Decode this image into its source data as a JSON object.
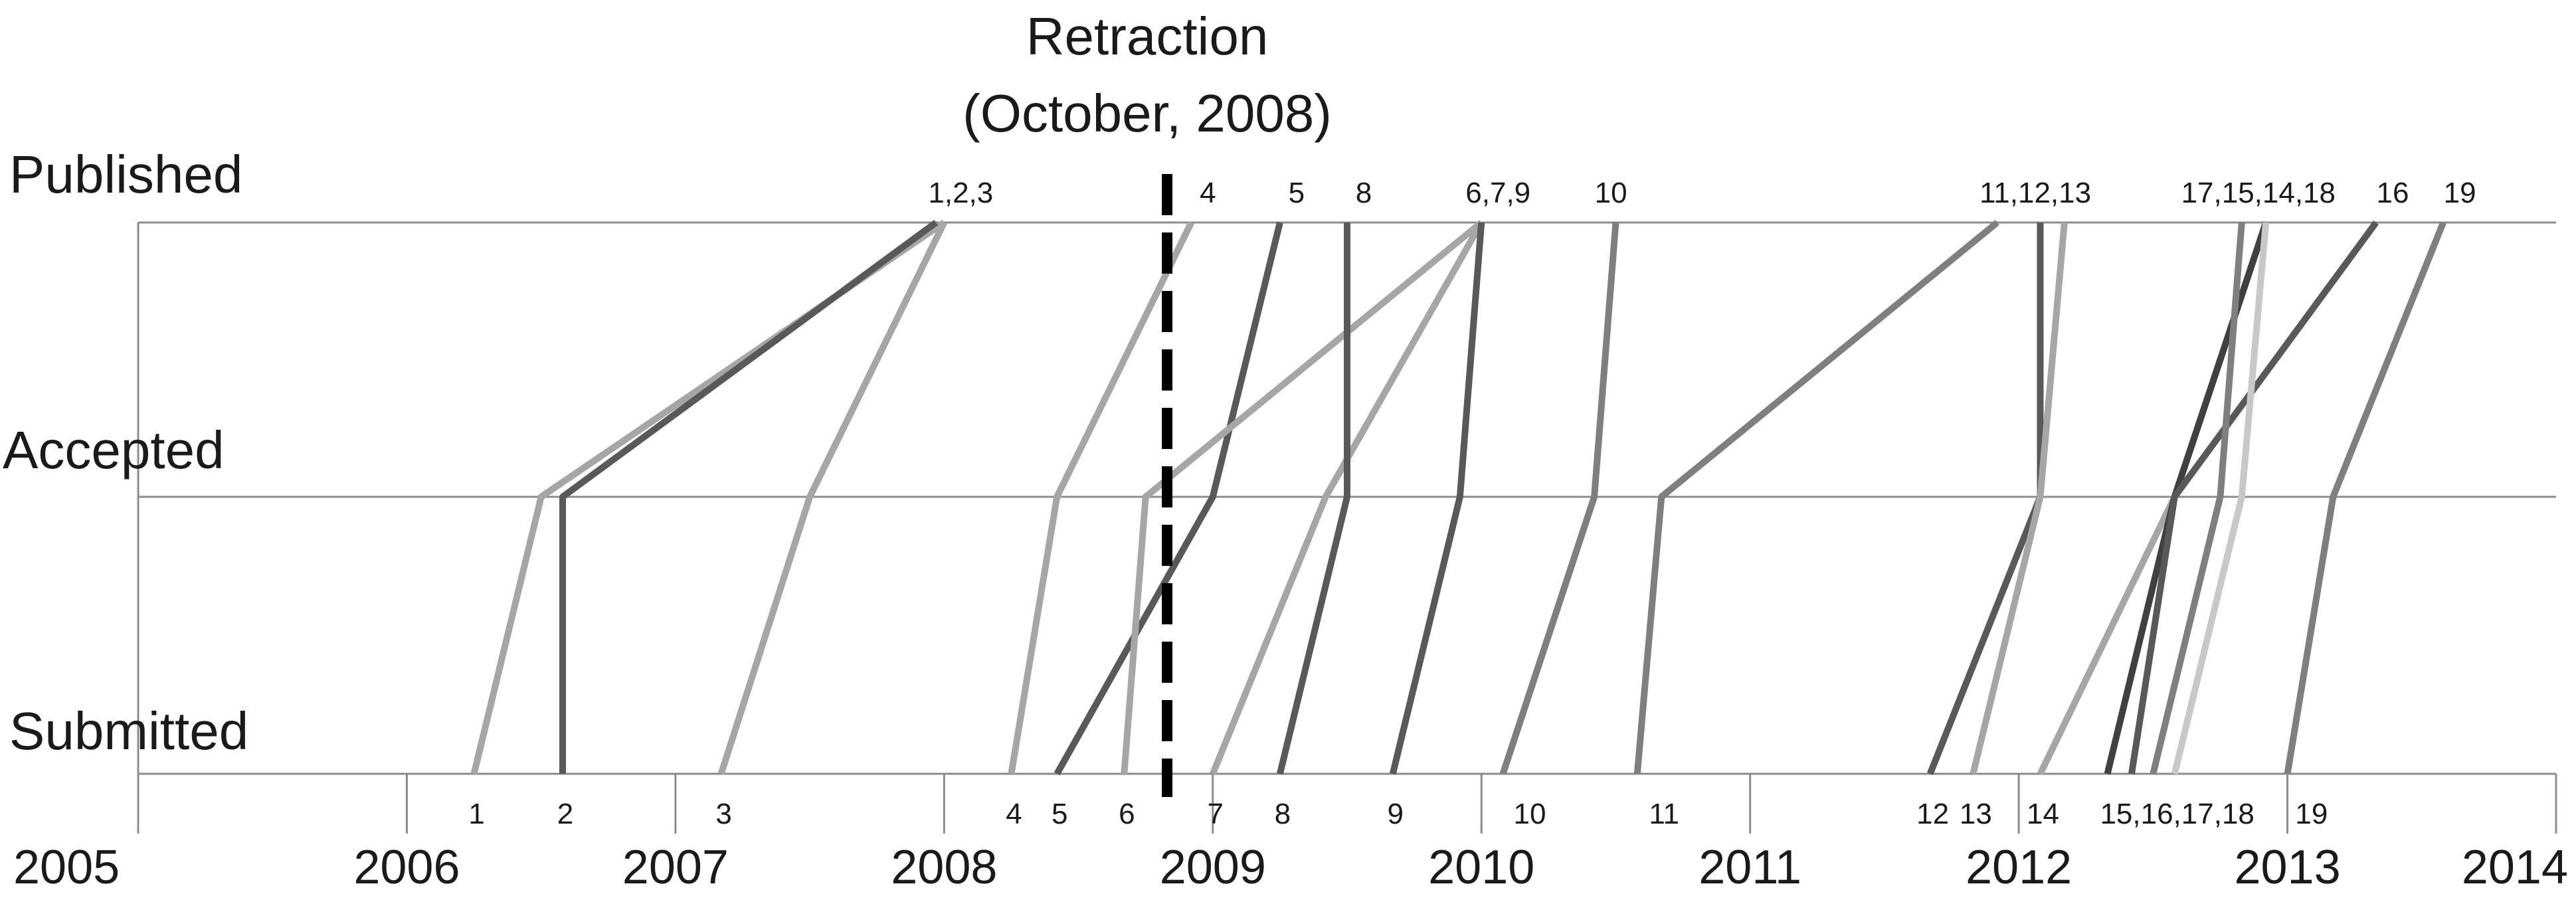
{
  "chart_data": {
    "type": "line",
    "title": "",
    "xlabel": "",
    "ylabel": "",
    "xlim": [
      2005,
      2014
    ],
    "x_ticks": [
      "2005",
      "2006",
      "2007",
      "2008",
      "2009",
      "2010",
      "2011",
      "2012",
      "2013",
      "2014"
    ],
    "stages": [
      "Submitted",
      "Accepted",
      "Published"
    ],
    "retraction": {
      "label_line1": "Retraction",
      "label_line2": "(October, 2008)",
      "x": 2008.83
    },
    "series": [
      {
        "id": "1",
        "submitted": 2006.25,
        "accepted": 2006.5,
        "published": 2008.0,
        "color": "#a6a6a6"
      },
      {
        "id": "2",
        "submitted": 2006.58,
        "accepted": 2006.58,
        "published": 2007.97,
        "color": "#595959"
      },
      {
        "id": "3",
        "submitted": 2007.17,
        "accepted": 2007.5,
        "published": 2008.0,
        "color": "#a6a6a6"
      },
      {
        "id": "4",
        "submitted": 2008.25,
        "accepted": 2008.42,
        "published": 2008.92,
        "color": "#a6a6a6"
      },
      {
        "id": "5",
        "submitted": 2008.42,
        "accepted": 2009.0,
        "published": 2009.25,
        "color": "#595959"
      },
      {
        "id": "6",
        "submitted": 2008.67,
        "accepted": 2008.75,
        "published": 2010.0,
        "color": "#a6a6a6"
      },
      {
        "id": "7",
        "submitted": 2009.0,
        "accepted": 2009.42,
        "published": 2010.0,
        "color": "#a6a6a6"
      },
      {
        "id": "8",
        "submitted": 2009.25,
        "accepted": 2009.5,
        "published": 2009.5,
        "color": "#595959"
      },
      {
        "id": "9",
        "submitted": 2009.67,
        "accepted": 2009.92,
        "published": 2010.0,
        "color": "#595959"
      },
      {
        "id": "10",
        "submitted": 2010.08,
        "accepted": 2010.42,
        "published": 2010.5,
        "color": "#7f7f7f"
      },
      {
        "id": "11",
        "submitted": 2010.58,
        "accepted": 2010.67,
        "published": 2011.92,
        "color": "#7f7f7f"
      },
      {
        "id": "12",
        "submitted": 2011.67,
        "accepted": 2012.08,
        "published": 2012.08,
        "color": "#595959"
      },
      {
        "id": "13",
        "submitted": 2011.83,
        "accepted": 2012.08,
        "published": 2012.17,
        "color": "#a6a6a6"
      },
      {
        "id": "14",
        "submitted": 2012.08,
        "accepted": 2012.58,
        "published": 2012.92,
        "color": "#a6a6a6"
      },
      {
        "id": "15",
        "submitted": 2012.33,
        "accepted": 2012.58,
        "published": 2012.92,
        "color": "#404040"
      },
      {
        "id": "16",
        "submitted": 2012.42,
        "accepted": 2012.58,
        "published": 2013.33,
        "color": "#595959"
      },
      {
        "id": "17",
        "submitted": 2012.5,
        "accepted": 2012.75,
        "published": 2012.83,
        "color": "#7f7f7f"
      },
      {
        "id": "18",
        "submitted": 2012.58,
        "accepted": 2012.83,
        "published": 2012.92,
        "color": "#c8c8c8"
      },
      {
        "id": "19",
        "submitted": 2013.0,
        "accepted": 2013.17,
        "published": 2013.58,
        "color": "#7f7f7f"
      }
    ],
    "top_labels": [
      {
        "text": "1,2,3",
        "x": 2008.0
      },
      {
        "text": "4",
        "x": 2008.92
      },
      {
        "text": "5",
        "x": 2009.25
      },
      {
        "text": "8",
        "x": 2009.5
      },
      {
        "text": "6,7,9",
        "x": 2010.0
      },
      {
        "text": "10",
        "x": 2010.42
      },
      {
        "text": "11,12,13",
        "x": 2012.0
      },
      {
        "text": "17,15,14,18",
        "x": 2012.83
      },
      {
        "text": "16",
        "x": 2013.33
      },
      {
        "text": "19",
        "x": 2013.58
      }
    ],
    "bottom_labels": [
      {
        "text": "1",
        "x": 2006.25
      },
      {
        "text": "2",
        "x": 2006.58
      },
      {
        "text": "3",
        "x": 2007.17
      },
      {
        "text": "4",
        "x": 2008.25
      },
      {
        "text": "5",
        "x": 2008.42
      },
      {
        "text": "6",
        "x": 2008.67
      },
      {
        "text": "7",
        "x": 2009.0
      },
      {
        "text": "8",
        "x": 2009.25
      },
      {
        "text": "9",
        "x": 2009.67
      },
      {
        "text": "10",
        "x": 2010.17
      },
      {
        "text": "11",
        "x": 2010.67
      },
      {
        "text": "12",
        "x": 2011.67
      },
      {
        "text": "13",
        "x": 2011.83
      },
      {
        "text": "14",
        "x": 2012.08
      },
      {
        "text": "15,16,17,18",
        "x": 2012.58
      },
      {
        "text": "19",
        "x": 2013.08
      }
    ],
    "grid": true,
    "legend": "none"
  }
}
